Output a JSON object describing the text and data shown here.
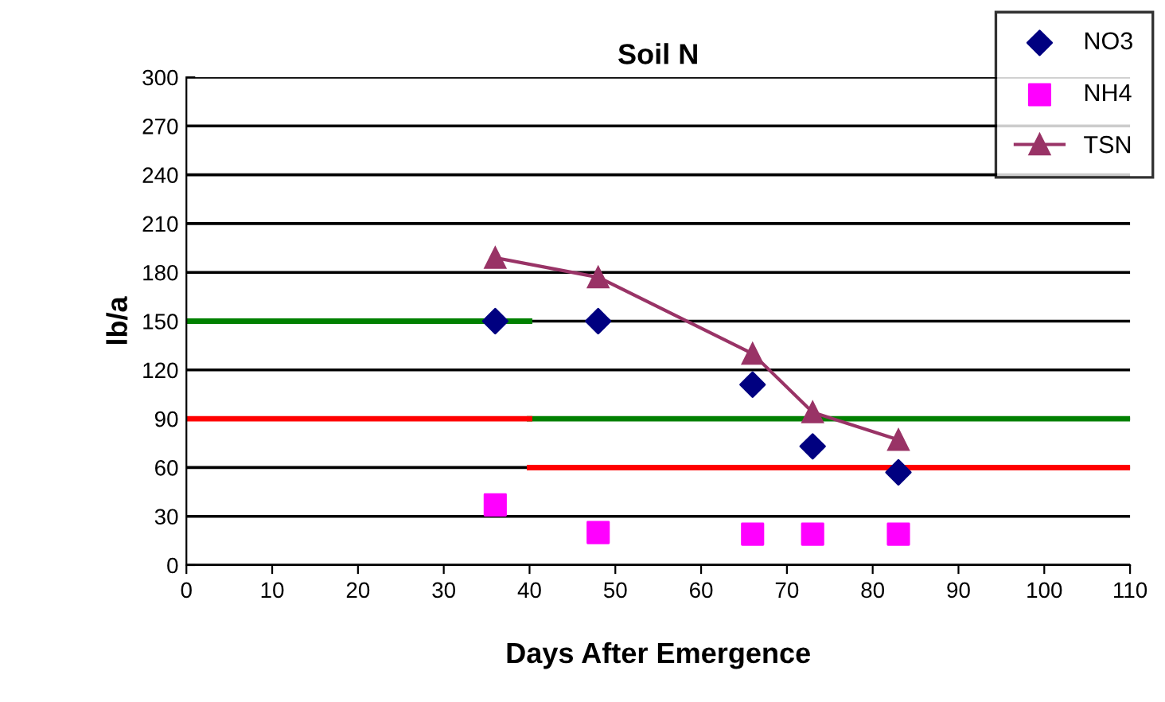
{
  "chart_data": {
    "type": "scatter",
    "title": "Soil N",
    "xlabel": "Days After Emergence",
    "ylabel": "lb/a",
    "xlim": [
      0,
      110
    ],
    "xticks": [
      0,
      10,
      20,
      30,
      40,
      50,
      60,
      70,
      80,
      90,
      100,
      110
    ],
    "ylim": [
      0,
      300
    ],
    "yticks": [
      0,
      30,
      60,
      90,
      120,
      150,
      180,
      210,
      240,
      270,
      300
    ],
    "grid": "y",
    "legend": "top right",
    "series": [
      {
        "type": "line",
        "color": "#008000",
        "x": [
          0,
          40
        ],
        "values": [
          150,
          150
        ],
        "marker": "none"
      },
      {
        "type": "line",
        "color": "#008000",
        "x": [
          40,
          110
        ],
        "values": [
          90,
          90
        ],
        "marker": "none"
      },
      {
        "type": "line",
        "color": "#ff0000",
        "x": [
          0,
          40
        ],
        "values": [
          90,
          90
        ],
        "marker": "none"
      },
      {
        "type": "line",
        "color": "#ff0000",
        "x": [
          40,
          110
        ],
        "values": [
          60,
          60
        ],
        "marker": "none"
      },
      {
        "name": "NO3",
        "color": "#000080",
        "marker": "diamond",
        "x": [
          36,
          48,
          66,
          73,
          83
        ],
        "values": [
          150,
          150,
          111,
          73,
          57
        ]
      },
      {
        "name": "NH4",
        "color": "#ff00ff",
        "marker": "square",
        "x": [
          36,
          48,
          66,
          73,
          83
        ],
        "values": [
          37,
          20,
          19,
          19,
          19
        ]
      },
      {
        "name": "TSN",
        "type": "line",
        "color": "#993366",
        "marker": "triangle",
        "x": [
          36,
          48,
          66,
          73,
          83
        ],
        "values": [
          189,
          177,
          130,
          94,
          77
        ]
      }
    ]
  }
}
